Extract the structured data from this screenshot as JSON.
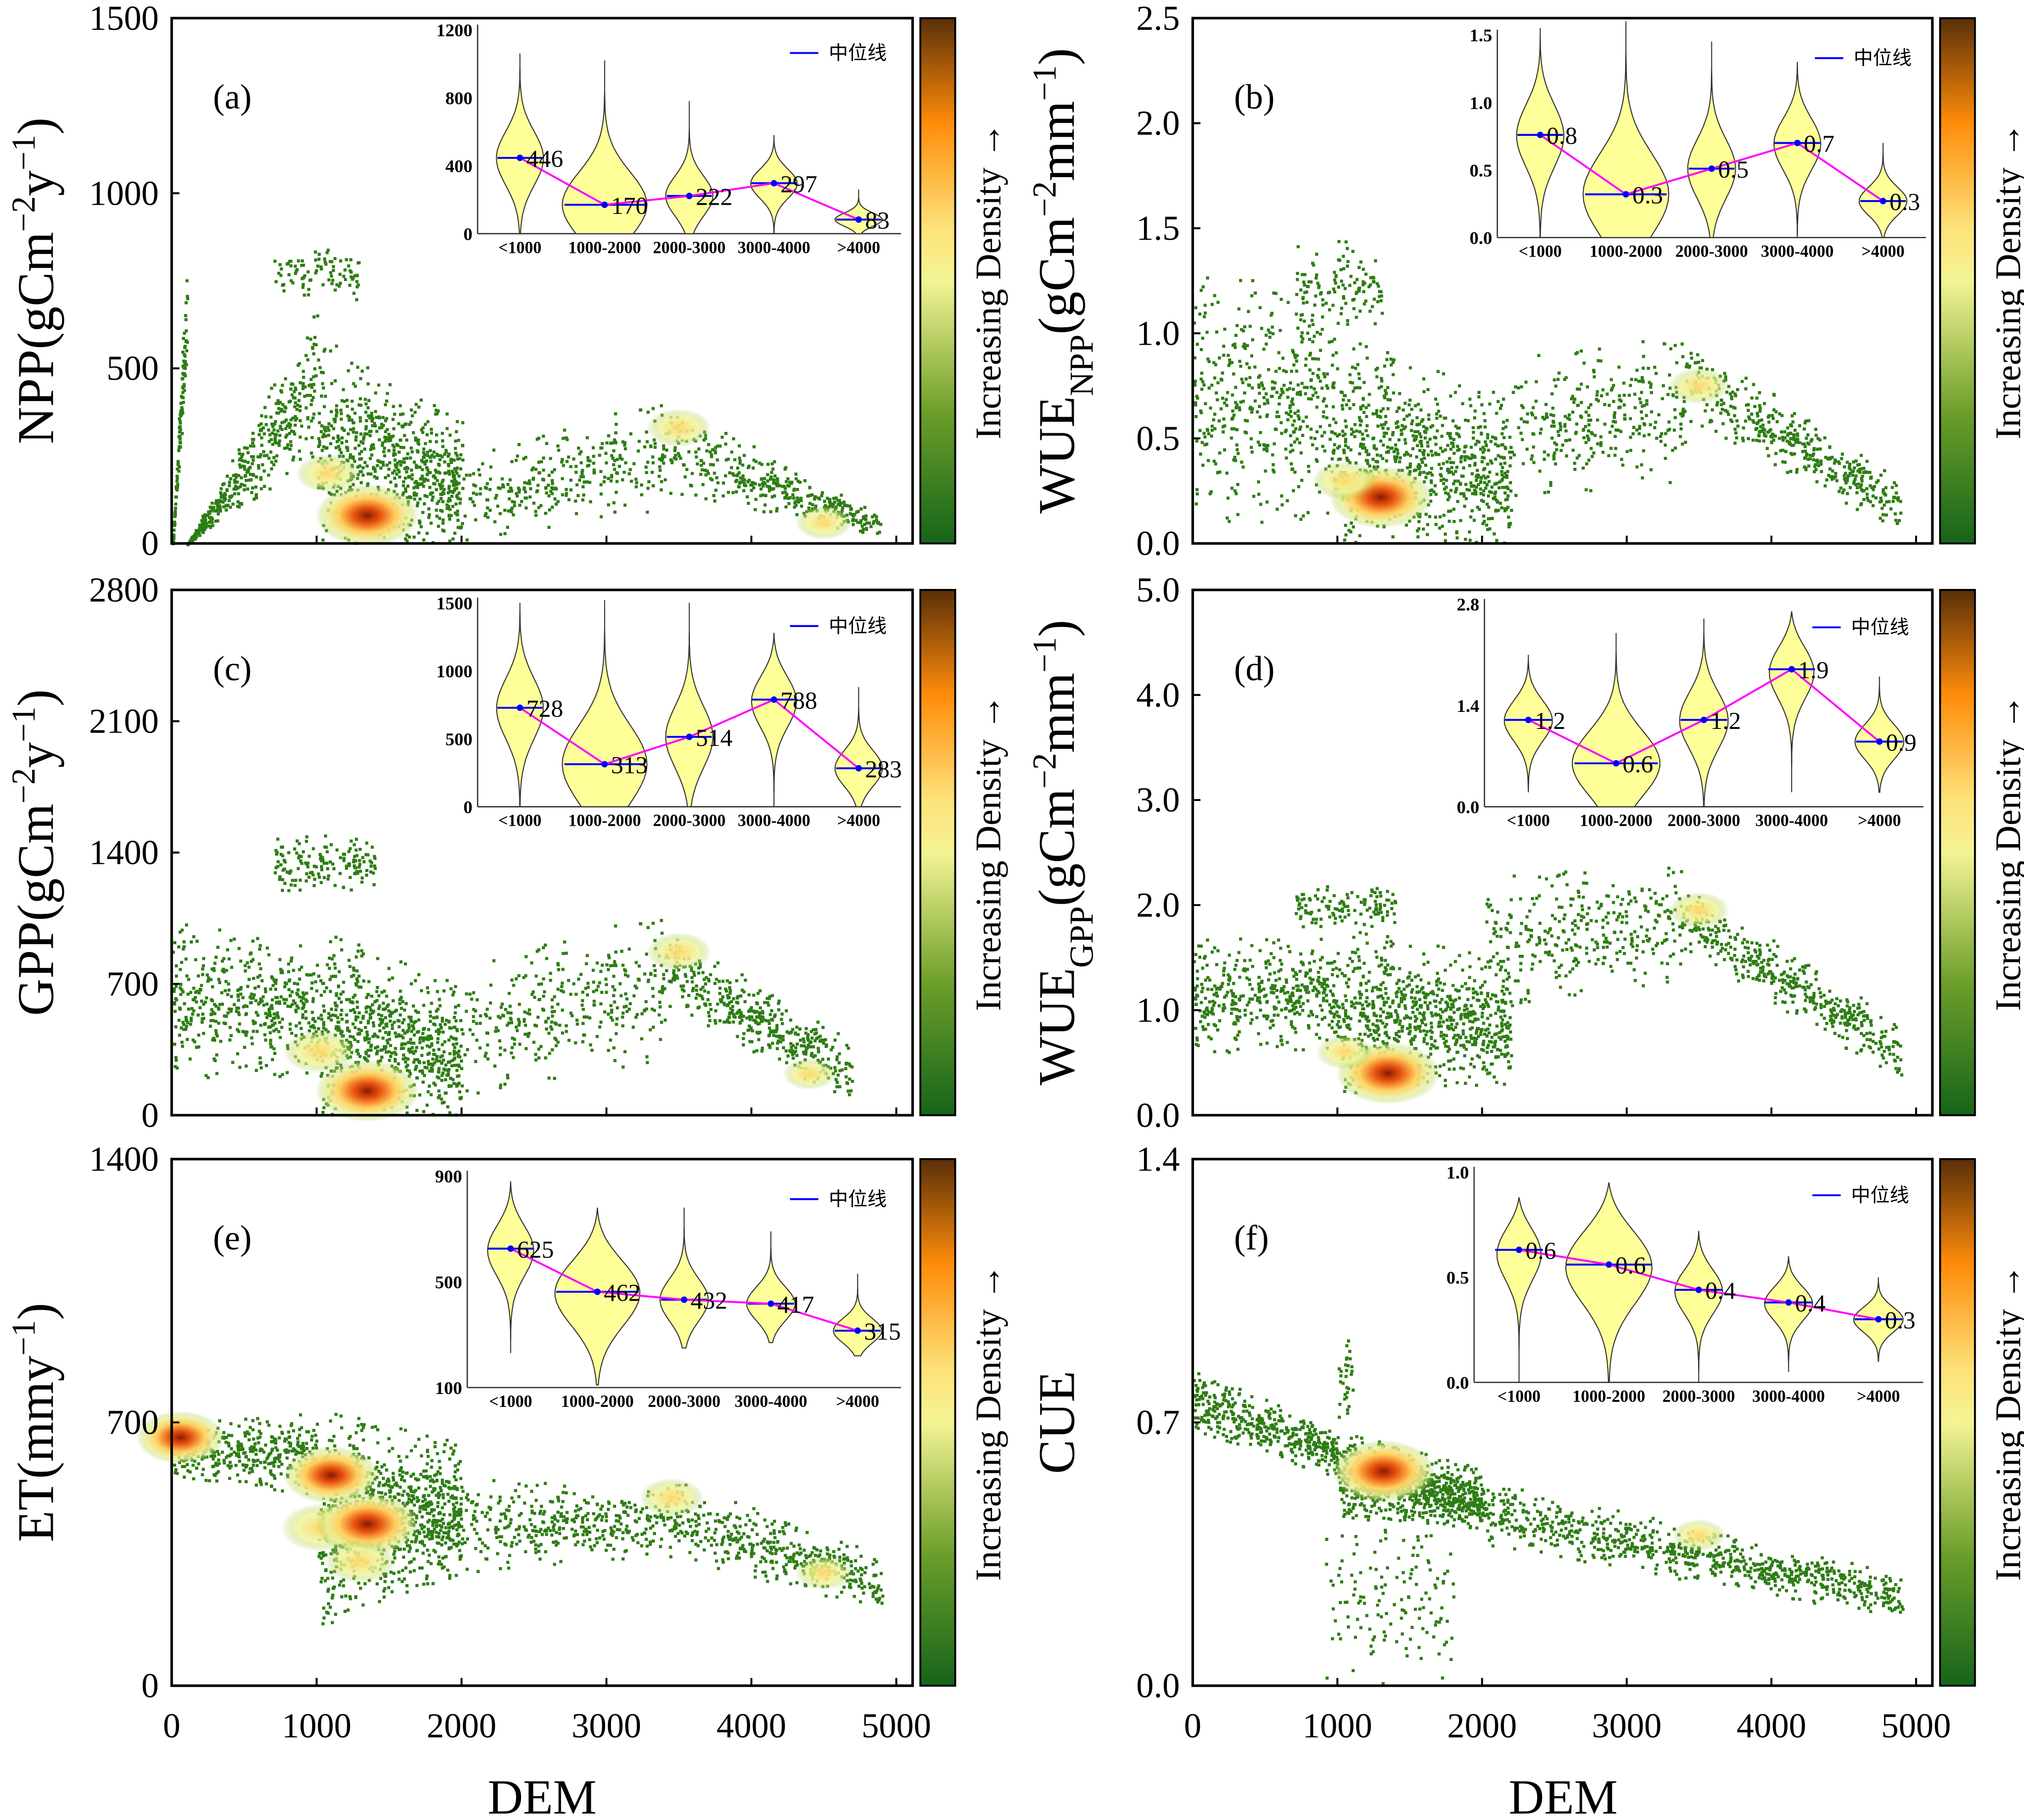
{
  "colorbar_label": "Increasing Density →",
  "xlabel": "DEM",
  "legend_label": "中位线",
  "colors": {
    "violin_fill": "#ffff99",
    "median": "#0000ff",
    "trend": "#ff00ff",
    "point": "#2e7d14"
  },
  "chart_data": [
    {
      "type": "scatter",
      "id": "a",
      "panel_label": "(a)",
      "ylabel": [
        {
          "t": "NPP(gCm"
        },
        {
          "t": "−2",
          "s": "sup"
        },
        {
          "t": "y"
        },
        {
          "t": "−1",
          "s": "sup"
        },
        {
          "t": ")"
        }
      ],
      "xlim": [
        0,
        5000
      ],
      "xticks": [
        "0",
        "1000",
        "2000",
        "3000",
        "4000",
        "5000"
      ],
      "ylim": [
        0,
        1500
      ],
      "yticks": [
        "0",
        "500",
        "1000",
        "1500"
      ],
      "clusters": [
        [
          0,
          100,
          0,
          500,
          0,
          850,
          120
        ],
        [
          100,
          1000,
          0,
          250,
          0,
          700,
          420
        ],
        [
          700,
          1300,
          700,
          700,
          850,
          850,
          90
        ],
        [
          1000,
          2000,
          0,
          0,
          600,
          350,
          700
        ],
        [
          2000,
          3400,
          0,
          100,
          250,
          420,
          300
        ],
        [
          3400,
          4900,
          150,
          20,
          420,
          80,
          380
        ]
      ],
      "hotspots": [
        [
          1350,
          80,
          1
        ],
        [
          1080,
          200,
          0.5
        ],
        [
          3500,
          330,
          0.5
        ],
        [
          4500,
          60,
          0.4
        ]
      ],
      "inset": {
        "ylim": [
          0,
          1200
        ],
        "yticks": [
          "0",
          "400",
          "800",
          "1200"
        ],
        "categories": [
          "<1000",
          "1000-2000",
          "2000-3000",
          "3000-4000",
          ">4000"
        ],
        "medians": [
          446,
          170,
          222,
          297,
          83
        ],
        "median_labels": [
          "446",
          "170",
          "222",
          "297",
          "83"
        ],
        "ranges": [
          [
            0,
            1060
          ],
          [
            0,
            1020
          ],
          [
            0,
            780
          ],
          [
            0,
            580
          ],
          [
            0,
            260
          ]
        ]
      }
    },
    {
      "type": "scatter",
      "id": "b",
      "panel_label": "(b)",
      "ylabel": [
        {
          "t": "WUE"
        },
        {
          "t": "NPP",
          "s": "sub"
        },
        {
          "t": "(gCm"
        },
        {
          "t": "−2",
          "s": "sup"
        },
        {
          "t": "mm"
        },
        {
          "t": "−1",
          "s": "sup"
        },
        {
          "t": ")"
        }
      ],
      "xlim": [
        0,
        5000
      ],
      "xticks": [
        "0",
        "1000",
        "2000",
        "3000",
        "4000",
        "5000"
      ],
      "ylim": [
        0,
        2.5
      ],
      "yticks": [
        "0.0",
        "0.5",
        "1.0",
        "1.5",
        "2.0",
        "2.5"
      ],
      "clusters": [
        [
          0,
          1000,
          0.1,
          0.1,
          1.3,
          1.2,
          450
        ],
        [
          700,
          1300,
          1.0,
          1.0,
          1.45,
          1.45,
          120
        ],
        [
          1000,
          2200,
          0,
          0,
          1.0,
          0.7,
          750
        ],
        [
          2200,
          3400,
          0.2,
          0.3,
          0.9,
          1.0,
          300
        ],
        [
          3400,
          4900,
          0.6,
          0.05,
          1.0,
          0.3,
          420
        ]
      ],
      "hotspots": [
        [
          1300,
          0.22,
          1
        ],
        [
          1050,
          0.3,
          0.5
        ],
        [
          3500,
          0.75,
          0.45
        ]
      ],
      "inset": {
        "ylim": [
          0,
          1.5
        ],
        "yticks": [
          "0.0",
          "0.5",
          "1.0",
          "1.5"
        ],
        "categories": [
          "<1000",
          "1000-2000",
          "2000-3000",
          "3000-4000",
          ">4000"
        ],
        "medians": [
          0.76,
          0.32,
          0.51,
          0.7,
          0.27
        ],
        "median_labels": [
          "0.8",
          "0.3",
          "0.5",
          "0.7",
          "0.3"
        ],
        "ranges": [
          [
            0,
            1.55
          ],
          [
            0,
            1.6
          ],
          [
            0,
            1.45
          ],
          [
            0,
            1.3
          ],
          [
            0,
            0.7
          ]
        ]
      }
    },
    {
      "type": "scatter",
      "id": "c",
      "panel_label": "(c)",
      "ylabel": [
        {
          "t": "GPP(gCm"
        },
        {
          "t": "−2",
          "s": "sup"
        },
        {
          "t": "y"
        },
        {
          "t": "−1",
          "s": "sup"
        },
        {
          "t": ")"
        }
      ],
      "xlim": [
        0,
        5000
      ],
      "xticks": [
        "0",
        "1000",
        "2000",
        "3000",
        "4000",
        "5000"
      ],
      "ylim": [
        0,
        2800
      ],
      "yticks": [
        "0",
        "700",
        "1400",
        "2100",
        "2800"
      ],
      "clusters": [
        [
          0,
          1000,
          200,
          200,
          1050,
          900,
          450
        ],
        [
          700,
          1400,
          1200,
          1200,
          1500,
          1500,
          150
        ],
        [
          1000,
          2000,
          0,
          0,
          1000,
          700,
          700
        ],
        [
          2000,
          3400,
          100,
          300,
          800,
          1100,
          330
        ],
        [
          3400,
          4700,
          600,
          50,
          1000,
          400,
          420
        ]
      ],
      "hotspots": [
        [
          1350,
          130,
          1
        ],
        [
          1020,
          340,
          0.6
        ],
        [
          3500,
          870,
          0.5
        ],
        [
          4400,
          220,
          0.35
        ]
      ],
      "inset": {
        "ylim": [
          0,
          1500
        ],
        "yticks": [
          "0",
          "500",
          "1000",
          "1500"
        ],
        "categories": [
          "<1000",
          "1000-2000",
          "2000-3000",
          "3000-4000",
          ">4000"
        ],
        "medians": [
          728,
          313,
          514,
          788,
          283
        ],
        "median_labels": [
          "728",
          "313",
          "514",
          "788",
          "283"
        ],
        "ranges": [
          [
            0,
            1500
          ],
          [
            0,
            1520
          ],
          [
            0,
            1500
          ],
          [
            0,
            1280
          ],
          [
            0,
            880
          ]
        ]
      }
    },
    {
      "type": "scatter",
      "id": "d",
      "panel_label": "(d)",
      "ylabel": [
        {
          "t": "WUE"
        },
        {
          "t": "GPP",
          "s": "sub"
        },
        {
          "t": "(gCm"
        },
        {
          "t": "−2",
          "s": "sup"
        },
        {
          "t": "mm"
        },
        {
          "t": "−1",
          "s": "sup"
        },
        {
          "t": ")"
        }
      ],
      "xlim": [
        0,
        5000
      ],
      "xticks": [
        "0",
        "1000",
        "2000",
        "3000",
        "4000",
        "5000"
      ],
      "ylim": [
        0,
        5.0
      ],
      "yticks": [
        "0.0",
        "1.0",
        "2.0",
        "3.0",
        "4.0",
        "5.0"
      ],
      "clusters": [
        [
          0,
          1000,
          0.6,
          0.6,
          1.7,
          1.7,
          420
        ],
        [
          700,
          1400,
          1.8,
          1.8,
          2.2,
          2.2,
          120
        ],
        [
          1000,
          2200,
          0.2,
          0.3,
          1.8,
          1.5,
          750
        ],
        [
          2000,
          3400,
          1.0,
          1.3,
          2.3,
          2.4,
          330
        ],
        [
          3400,
          4900,
          1.6,
          0.3,
          2.2,
          0.9,
          420
        ]
      ],
      "hotspots": [
        [
          1350,
          0.4,
          1
        ],
        [
          1050,
          0.6,
          0.4
        ],
        [
          3500,
          1.95,
          0.45
        ]
      ],
      "inset": {
        "ylim": [
          0,
          2.8
        ],
        "yticks": [
          "0.0",
          "1.4",
          "2.8"
        ],
        "categories": [
          "<1000",
          "1000-2000",
          "2000-3000",
          "3000-4000",
          ">4000"
        ],
        "medians": [
          1.2,
          0.6,
          1.2,
          1.9,
          0.9
        ],
        "median_labels": [
          "1.2",
          "0.6",
          "1.2",
          "1.9",
          "0.9"
        ],
        "ranges": [
          [
            0.2,
            2.1
          ],
          [
            0,
            2.4
          ],
          [
            0,
            2.6
          ],
          [
            0.2,
            2.7
          ],
          [
            0.2,
            1.8
          ]
        ]
      }
    },
    {
      "type": "scatter",
      "id": "e",
      "panel_label": "(e)",
      "ylabel": [
        {
          "t": "ET(mmy"
        },
        {
          "t": "−1",
          "s": "sup"
        },
        {
          "t": ")"
        }
      ],
      "xlim": [
        0,
        5000
      ],
      "xticks": [
        "0",
        "1000",
        "2000",
        "3000",
        "4000",
        "5000"
      ],
      "ylim": [
        0,
        1400
      ],
      "yticks": [
        "0",
        "700",
        "1400"
      ],
      "clusters": [
        [
          0,
          1000,
          560,
          500,
          700,
          730,
          400
        ],
        [
          1000,
          2000,
          150,
          300,
          740,
          650,
          900
        ],
        [
          2000,
          3400,
          300,
          350,
          560,
          520,
          350
        ],
        [
          3400,
          4900,
          350,
          200,
          560,
          350,
          420
        ]
      ],
      "hotspots": [
        [
          60,
          660,
          0.8
        ],
        [
          1100,
          560,
          0.9
        ],
        [
          1030,
          420,
          0.7
        ],
        [
          1350,
          430,
          1
        ],
        [
          1300,
          330,
          0.6
        ],
        [
          3450,
          500,
          0.5
        ],
        [
          4500,
          300,
          0.4
        ]
      ],
      "inset": {
        "ylim": [
          100,
          900
        ],
        "yticks": [
          "100",
          "500",
          "900"
        ],
        "categories": [
          "<1000",
          "1000-2000",
          "2000-3000",
          "3000-4000",
          ">4000"
        ],
        "medians": [
          625,
          462,
          432,
          417,
          315
        ],
        "median_labels": [
          "625",
          "462",
          "432",
          "417",
          "315"
        ],
        "ranges": [
          [
            230,
            880
          ],
          [
            110,
            780
          ],
          [
            250,
            780
          ],
          [
            270,
            690
          ],
          [
            220,
            530
          ]
        ]
      }
    },
    {
      "type": "scatter",
      "id": "f",
      "panel_label": "(f)",
      "ylabel": [
        {
          "t": "CUE"
        }
      ],
      "xlim": [
        0,
        5000
      ],
      "xticks": [
        "0",
        "1000",
        "2000",
        "3000",
        "4000",
        "5000"
      ],
      "ylim": [
        0,
        1.4
      ],
      "yticks": [
        "0.0",
        "0.7",
        "1.4"
      ],
      "clusters": [
        [
          0,
          1000,
          0.68,
          0.55,
          0.85,
          0.68,
          420
        ],
        [
          1000,
          2000,
          0.45,
          0.42,
          0.68,
          0.58,
          800
        ],
        [
          900,
          1800,
          0,
          0,
          0.5,
          0.5,
          150
        ],
        [
          2000,
          4900,
          0.38,
          0.18,
          0.55,
          0.3,
          800
        ],
        [
          1000,
          1100,
          0.7,
          0.7,
          0.95,
          0.95,
          30
        ]
      ],
      "hotspots": [
        [
          1320,
          0.57,
          1
        ],
        [
          3500,
          0.4,
          0.35
        ]
      ],
      "inset": {
        "ylim": [
          0,
          1.0
        ],
        "yticks": [
          "0.0",
          "0.5",
          "1.0"
        ],
        "categories": [
          "<1000",
          "1000-2000",
          "2000-3000",
          "3000-4000",
          ">4000"
        ],
        "medians": [
          0.63,
          0.56,
          0.44,
          0.38,
          0.3
        ],
        "median_labels": [
          "0.6",
          "0.6",
          "0.4",
          "0.4",
          "0.3"
        ],
        "ranges": [
          [
            0,
            0.88
          ],
          [
            0,
            0.95
          ],
          [
            0,
            0.72
          ],
          [
            0.05,
            0.6
          ],
          [
            0.1,
            0.5
          ]
        ]
      }
    }
  ]
}
